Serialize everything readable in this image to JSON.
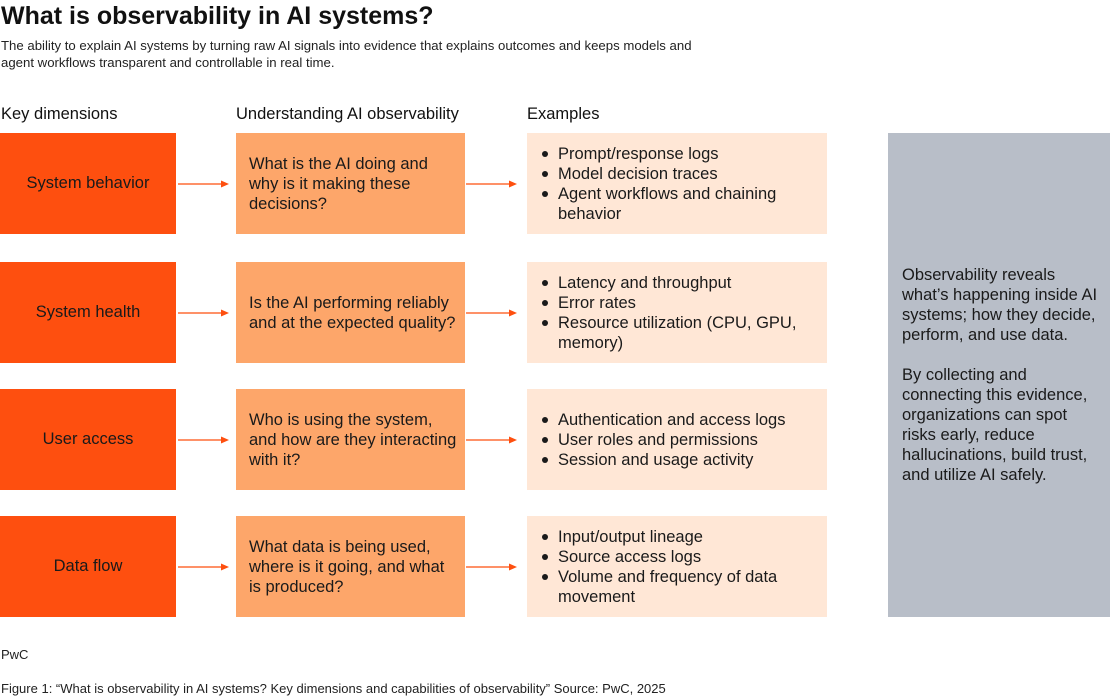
{
  "title": "What is observability in AI systems?",
  "subtitle": "The ability to explain AI systems by turning raw AI signals into evidence that explains outcomes and keeps models and agent workflows transparent and controllable in real time.",
  "columns": {
    "dimensions": "Key dimensions",
    "understanding": "Understanding AI observability",
    "examples": "Examples"
  },
  "rows": [
    {
      "dimension": "System behavior",
      "question": "What is the AI doing and why is it making these decisions?",
      "examples": [
        "Prompt/response logs",
        "Model decision traces",
        "Agent workflows and chaining behavior"
      ]
    },
    {
      "dimension": "System health",
      "question": "Is the AI performing reliably and at the expected quality?",
      "examples": [
        "Latency and throughput",
        "Error rates",
        "Resource utilization (CPU, GPU, memory)"
      ]
    },
    {
      "dimension": "User access",
      "question": "Who is using the system, and how are they interacting with it?",
      "examples": [
        "Authentication and access logs",
        "User roles and permissions",
        "Session and usage activity"
      ]
    },
    {
      "dimension": "Data flow",
      "question": "What data is being used, where is it going, and what is produced?",
      "examples": [
        "Input/output lineage",
        "Source access logs",
        "Volume and frequency of data movement"
      ]
    }
  ],
  "side_panel": {
    "paragraph_1": "Observability reveals what’s happening inside AI systems; how they decide, perform, and use data.",
    "paragraph_2": "By collecting and connecting this evidence, organizations can spot risks early, reduce hallucinations, build trust, and utilize AI safely."
  },
  "brand": "PwC",
  "caption": "Figure 1: “What is observability in AI systems? Key dimensions and capabilities of observability” Source: PwC, 2025",
  "colors": {
    "dimension_fill": "#fe4f0f",
    "understanding_fill": "#fda66a",
    "examples_fill": "#ffe7d6",
    "side_panel_fill": "#b8bec8",
    "arrow": "#fe4f0f"
  }
}
